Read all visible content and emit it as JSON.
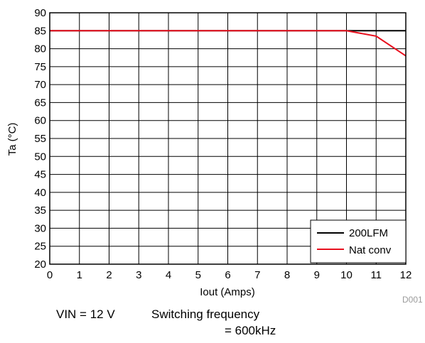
{
  "chart_data": {
    "type": "line",
    "xlabel": "Iout (Amps)",
    "ylabel": "Ta (°C)",
    "xlim": [
      0,
      12
    ],
    "ylim": [
      20,
      90
    ],
    "x_ticks": [
      0,
      1,
      2,
      3,
      4,
      5,
      6,
      7,
      8,
      9,
      10,
      11,
      12
    ],
    "y_ticks": [
      20,
      25,
      30,
      35,
      40,
      45,
      50,
      55,
      60,
      65,
      70,
      75,
      80,
      85,
      90
    ],
    "grid": true,
    "legend_position": "bottom-right",
    "series": [
      {
        "name": "200LFM",
        "color": "#000000",
        "x": [
          0,
          1,
          2,
          3,
          4,
          5,
          6,
          7,
          8,
          9,
          10,
          11,
          12
        ],
        "y": [
          85,
          85,
          85,
          85,
          85,
          85,
          85,
          85,
          85,
          85,
          85,
          85,
          85
        ]
      },
      {
        "name": "Nat conv",
        "color": "#e8101e",
        "x": [
          0,
          1,
          2,
          3,
          4,
          5,
          6,
          7,
          8,
          9,
          10,
          11,
          12
        ],
        "y": [
          85,
          85,
          85,
          85,
          85,
          85,
          85,
          85,
          85,
          85,
          85,
          83.5,
          78
        ]
      }
    ],
    "figure_code": "D001"
  },
  "notes": {
    "vin": "VIN = 12 V",
    "switching_line1": "Switching frequency",
    "switching_line2": "= 600kHz"
  }
}
